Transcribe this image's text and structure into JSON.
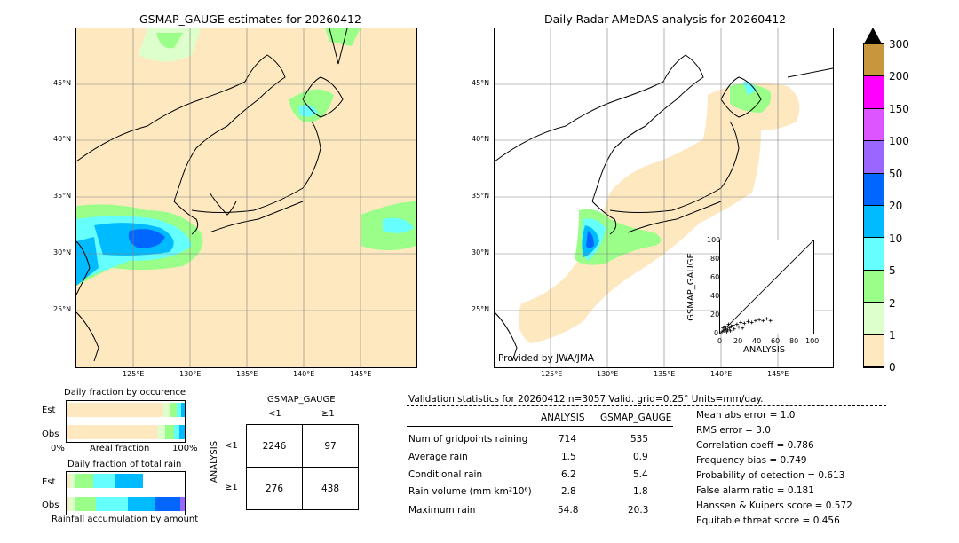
{
  "map_left": {
    "title": "GSMAP_GAUGE estimates for 20260412",
    "lat_labels": [
      "45°N",
      "40°N",
      "35°N",
      "30°N",
      "25°N"
    ],
    "lon_labels": [
      "125°E",
      "130°E",
      "135°E",
      "140°E",
      "145°E"
    ]
  },
  "map_right": {
    "title": "Daily Radar-AMeDAS analysis for 20260412",
    "lat_labels": [
      "45°N",
      "40°N",
      "35°N",
      "30°N",
      "25°N"
    ],
    "lon_labels": [
      "125°E",
      "130°E",
      "135°E",
      "140°E",
      "145°E"
    ],
    "credit": "Provided by JWA/JMA"
  },
  "colorbar": {
    "labels": [
      "300",
      "200",
      "150",
      "100",
      "50",
      "20",
      "10",
      "5",
      "2",
      "1",
      "0"
    ],
    "colors": [
      "#c8963c",
      "#ff00ff",
      "#dd55ff",
      "#9966ff",
      "#0066ff",
      "#00bbff",
      "#66ffff",
      "#99ff88",
      "#ddffcc",
      "#fde8c0"
    ]
  },
  "scatter": {
    "xlabel": "ANALYSIS",
    "ylabel": "GSMAP_GAUGE",
    "ticks": [
      "0",
      "20",
      "40",
      "60",
      "80",
      "100"
    ]
  },
  "occurrence": {
    "title": "Daily fraction by occurence",
    "rows": [
      "Est",
      "Obs"
    ],
    "xaxis": [
      "0%",
      "Areal fraction",
      "100%"
    ]
  },
  "total_rain": {
    "title": "Daily fraction of total rain",
    "rows": [
      "Est",
      "Obs"
    ],
    "xlabel": "Rainfall accumulation by amount"
  },
  "contingency": {
    "col_header": "GSMAP_GAUGE",
    "col_labels": [
      "<1",
      "≥1"
    ],
    "row_header": "ANALYSIS",
    "row_labels": [
      "<1",
      "≥1"
    ],
    "cells": [
      [
        "2246",
        "97"
      ],
      [
        "276",
        "438"
      ]
    ]
  },
  "validation": {
    "header": "Validation statistics for 20260412  n=3057 Valid. grid=0.25° Units=mm/day.",
    "columns": [
      "ANALYSIS",
      "GSMAP_GAUGE"
    ],
    "rows": [
      {
        "label": "Num of gridpoints raining",
        "analysis": "714",
        "gsmap": "535"
      },
      {
        "label": "Average rain",
        "analysis": "1.5",
        "gsmap": "0.9"
      },
      {
        "label": "Conditional rain",
        "analysis": "6.2",
        "gsmap": "5.4"
      },
      {
        "label": "Rain volume (mm km²10⁶)",
        "analysis": "2.8",
        "gsmap": "1.8"
      },
      {
        "label": "Maximum rain",
        "analysis": "54.8",
        "gsmap": "20.3"
      }
    ],
    "scores": [
      "Mean abs error =    1.0",
      "RMS error =    3.0",
      "Correlation coeff =  0.786",
      "Frequency bias =  0.749",
      "Probability of detection =  0.613",
      "False alarm ratio =  0.181",
      "Hanssen & Kuipers score =  0.572",
      "Equitable threat score =  0.456"
    ]
  },
  "chart_data": {
    "type": "table",
    "contingency": {
      "rows": [
        "<1",
        "≥1"
      ],
      "cols": [
        "<1",
        "≥1"
      ],
      "values": [
        [
          2246,
          97
        ],
        [
          276,
          438
        ]
      ]
    },
    "stats": {
      "n": 3057,
      "num_raining": {
        "analysis": 714,
        "gsmap": 535
      },
      "average_rain": {
        "analysis": 1.5,
        "gsmap": 0.9
      },
      "conditional_rain": {
        "analysis": 6.2,
        "gsmap": 5.4
      },
      "rain_volume": {
        "analysis": 2.8,
        "gsmap": 1.8
      },
      "maximum_rain": {
        "analysis": 54.8,
        "gsmap": 20.3
      },
      "mean_abs_error": 1.0,
      "rms_error": 3.0,
      "correlation": 0.786,
      "frequency_bias": 0.749,
      "pod": 0.613,
      "far": 0.181,
      "hk_score": 0.572,
      "ets": 0.456
    },
    "colorbar_levels": [
      0,
      1,
      2,
      5,
      10,
      20,
      50,
      100,
      150,
      200,
      300
    ]
  }
}
